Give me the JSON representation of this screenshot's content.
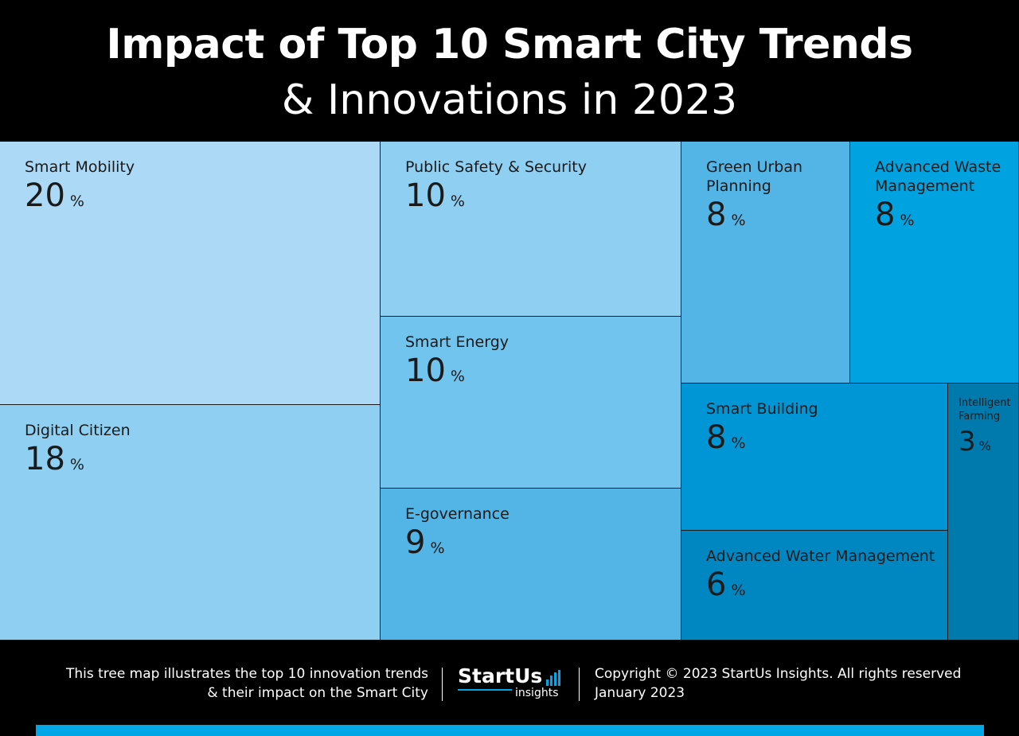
{
  "header": {
    "title_line1": "Impact of Top 10 Smart City Trends",
    "title_line2": "& Innovations in 2023"
  },
  "chart_data": {
    "type": "treemap",
    "title": "Impact of Top 10 Smart City Trends & Innovations in 2023",
    "unit": "%",
    "items": [
      {
        "label": "Smart Mobility",
        "value": 20,
        "color": "#acd9f5"
      },
      {
        "label": "Digital Citizen",
        "value": 18,
        "color": "#8ecff2"
      },
      {
        "label": "Public Safety & Security",
        "value": 10,
        "color": "#8ecff2"
      },
      {
        "label": "Smart Energy",
        "value": 10,
        "color": "#71c4ee"
      },
      {
        "label": "E-governance",
        "value": 9,
        "color": "#53b4e6"
      },
      {
        "label": "Green Urban Planning",
        "value": 8,
        "color": "#53b4e6"
      },
      {
        "label": "Advanced Waste Management",
        "value": 8,
        "color": "#00a3e0"
      },
      {
        "label": "Smart Building",
        "value": 8,
        "color": "#0095d5"
      },
      {
        "label": "Advanced Water Management",
        "value": 6,
        "color": "#0087c2"
      },
      {
        "label": "Intelligent Farming",
        "value": 3,
        "color": "#0079ad"
      }
    ]
  },
  "footer": {
    "description_line1": "This tree map illustrates the top 10 innovation trends",
    "description_line2": "& their impact on the Smart City",
    "logo_main": "StartUs",
    "logo_sub": "insights",
    "copyright": "Copyright © 2023 StartUs Insights. All rights reserved",
    "date": "January 2023",
    "accent_color": "#00a6e6"
  }
}
